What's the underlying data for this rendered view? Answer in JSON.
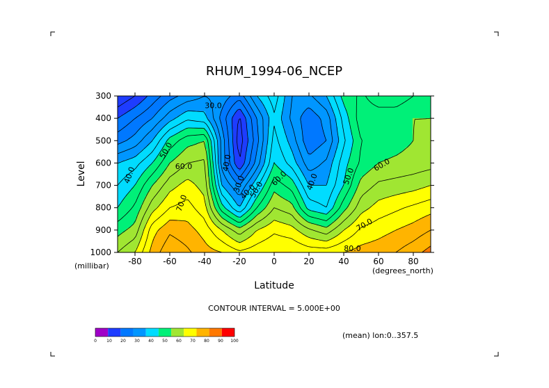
{
  "chart_data": {
    "type": "heatmap",
    "title": "RHUM_1994-06_NCEP",
    "xlabel": "Latitude",
    "ylabel": "Level",
    "x_unit": "(degrees_north)",
    "y_unit": "(millibar)",
    "xlim": [
      -90,
      90
    ],
    "ylim": [
      1000,
      300
    ],
    "x_ticks": [
      -80,
      -60,
      -40,
      -20,
      0,
      20,
      40,
      60,
      80
    ],
    "x_tick_labels": [
      "-80",
      "-60",
      "-40",
      "-20",
      "0",
      "20",
      "40",
      "60",
      "80"
    ],
    "y_ticks": [
      300,
      400,
      500,
      600,
      700,
      800,
      900,
      1000
    ],
    "y_tick_labels": [
      "300",
      "400",
      "500",
      "600",
      "700",
      "800",
      "900",
      "1000"
    ],
    "contour_interval_text": "CONTOUR INTERVAL = 5.000E+00",
    "footnote": "(mean) lon:0..357.5",
    "contour_labels": [
      "30.0",
      "40.0",
      "50.0",
      "60.0",
      "70.0",
      "40.0",
      "30.0",
      "40.0",
      "50.0",
      "60.0",
      "40.0",
      "50.0",
      "60.0",
      "70.0",
      "80.0"
    ],
    "colorbar": {
      "ticks": [
        "0",
        "10",
        "20",
        "30",
        "40",
        "50",
        "60",
        "70",
        "80",
        "90",
        "100"
      ],
      "colors": [
        "#a000c8",
        "#1e3cff",
        "#0078ff",
        "#0096ff",
        "#00dcff",
        "#00f078",
        "#a0e632",
        "#ffff00",
        "#ffb400",
        "#ff7800",
        "#ff0000"
      ]
    },
    "lat": [
      -90,
      -80,
      -70,
      -60,
      -50,
      -40,
      -30,
      -20,
      -10,
      0,
      10,
      20,
      30,
      40,
      50,
      60,
      70,
      80,
      90
    ],
    "levels": [
      300,
      400,
      500,
      600,
      700,
      800,
      900,
      1000
    ],
    "values": [
      [
        10,
        15,
        22,
        28,
        32,
        35,
        33,
        27,
        40,
        48,
        35,
        34,
        40,
        52,
        56,
        52,
        52,
        55,
        58
      ],
      [
        20,
        25,
        30,
        38,
        44,
        42,
        28,
        14,
        30,
        44,
        34,
        26,
        32,
        47,
        58,
        58,
        58,
        60,
        60
      ],
      [
        28,
        32,
        40,
        52,
        58,
        60,
        33,
        12,
        28,
        47,
        38,
        26,
        30,
        44,
        55,
        57,
        58,
        60,
        62
      ],
      [
        40,
        43,
        50,
        60,
        65,
        66,
        33,
        15,
        32,
        50,
        43,
        32,
        36,
        48,
        56,
        60,
        61,
        62,
        63
      ],
      [
        45,
        50,
        60,
        68,
        72,
        68,
        40,
        30,
        44,
        58,
        53,
        40,
        40,
        50,
        62,
        66,
        67,
        68,
        70
      ],
      [
        50,
        56,
        68,
        75,
        77,
        72,
        52,
        40,
        55,
        65,
        62,
        48,
        45,
        58,
        68,
        72,
        74,
        76,
        78
      ],
      [
        58,
        62,
        78,
        84,
        82,
        78,
        70,
        62,
        70,
        74,
        72,
        66,
        62,
        70,
        76,
        78,
        80,
        82,
        85
      ],
      [
        65,
        70,
        82,
        89,
        86,
        82,
        80,
        76,
        78,
        80,
        80,
        78,
        78,
        80,
        82,
        83,
        85,
        88,
        92
      ]
    ]
  }
}
